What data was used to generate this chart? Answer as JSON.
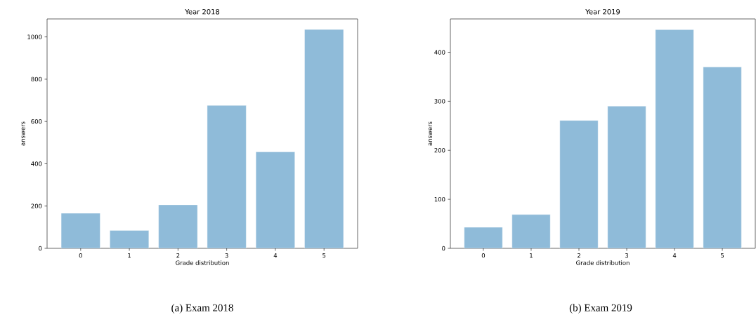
{
  "chart_data": [
    {
      "type": "bar",
      "title": "Year 2018",
      "xlabel": "Grade distribution",
      "ylabel": "answers",
      "categories": [
        "0",
        "1",
        "2",
        "3",
        "4",
        "5"
      ],
      "values": [
        166,
        85,
        206,
        676,
        456,
        1035
      ],
      "color": "#8fbbd9",
      "ylim": [
        0,
        1085
      ],
      "yticks": [
        0,
        200,
        400,
        600,
        800,
        1000
      ],
      "annotations": [
        "(a) Exam 2018"
      ]
    },
    {
      "type": "bar",
      "title": "Year 2019",
      "xlabel": "Grade distribution",
      "ylabel": "answers",
      "categories": [
        "0",
        "1",
        "2",
        "3",
        "4",
        "5"
      ],
      "values": [
        43,
        69,
        261,
        290,
        446,
        370
      ],
      "color": "#8fbbd9",
      "ylim": [
        0,
        468
      ],
      "yticks": [
        0,
        100,
        200,
        300,
        400
      ],
      "annotations": [
        "(b) Exam 2019"
      ]
    }
  ]
}
